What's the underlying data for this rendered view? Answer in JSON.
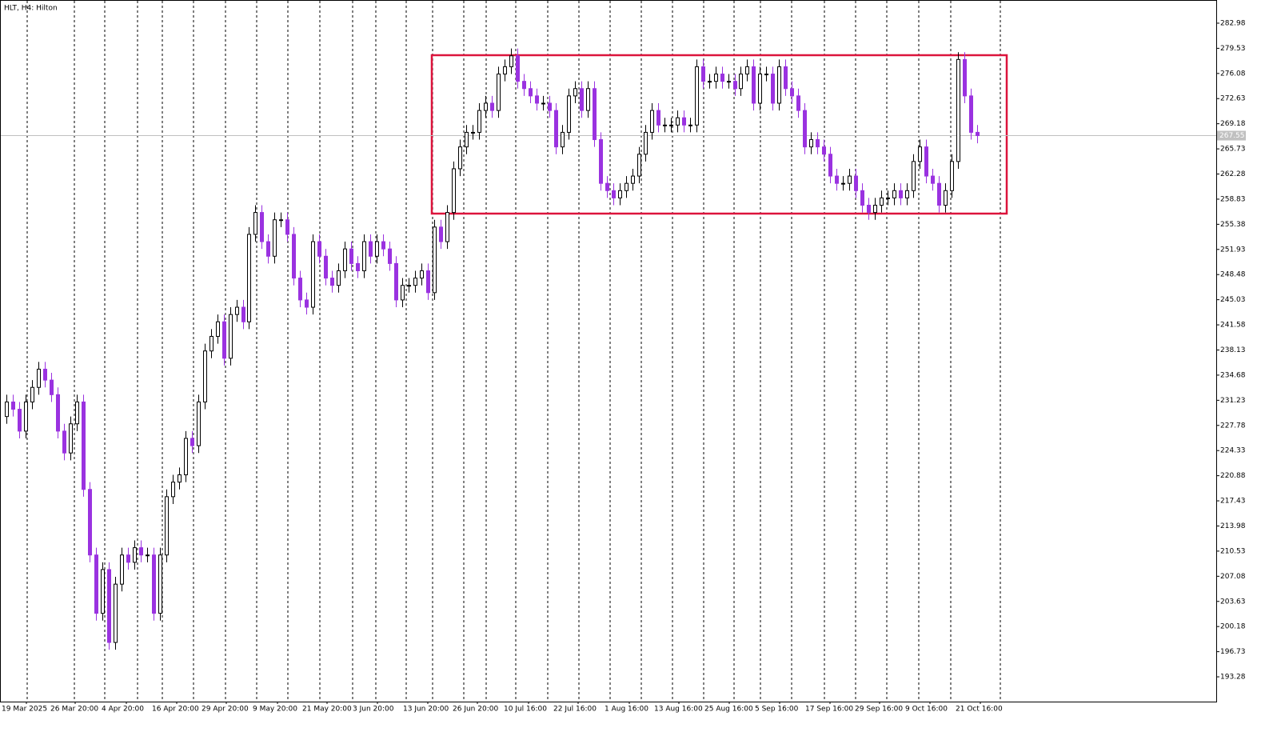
{
  "chart_data": {
    "type": "candlestick",
    "title": "HLT, H4:  Hilton",
    "up_color": "#ffffff",
    "down_color": "#9a32e0",
    "outline_color": "#000000",
    "ylim": [
      189.88,
      286.16
    ],
    "yticks": [
      282.98,
      279.53,
      276.08,
      272.63,
      269.18,
      265.73,
      262.28,
      258.83,
      255.38,
      251.93,
      248.48,
      245.03,
      241.58,
      238.13,
      234.68,
      231.23,
      227.78,
      224.33,
      220.88,
      217.43,
      213.98,
      210.53,
      207.08,
      203.63,
      200.18,
      196.73,
      193.28
    ],
    "last_price": 267.55,
    "xtick_labels": [
      "19 Mar 2025",
      "26 Mar 20:00",
      "4 Apr 20:00",
      "16 Apr 20:00",
      "29 Apr 20:00",
      "9 May 20:00",
      "21 May 20:00",
      "3 Jun 20:00",
      "13 Jun 20:00",
      "26 Jun 20:00",
      "10 Jul 16:00",
      "22 Jul 16:00",
      "1 Aug 16:00",
      "13 Aug 16:00",
      "25 Aug 16:00",
      "5 Sep 16:00",
      "17 Sep 16:00",
      "29 Sep 16:00",
      "9 Oct 16:00",
      "21 Oct 16:00"
    ],
    "open": [
      229,
      231,
      230,
      227,
      231,
      233,
      235.5,
      234,
      232,
      227,
      224,
      228,
      231,
      219,
      210,
      202,
      208,
      198,
      206,
      210,
      209,
      211,
      210,
      210,
      202,
      210,
      218,
      220,
      221,
      226,
      225,
      231,
      238,
      240,
      242,
      237,
      243,
      244,
      242,
      254,
      257,
      253,
      251,
      256,
      256,
      254,
      248,
      245,
      244,
      253,
      251,
      248,
      247,
      249,
      252,
      250,
      249,
      253,
      251,
      253,
      252,
      250,
      245,
      247,
      247,
      248,
      249,
      246,
      255,
      253,
      257,
      263,
      266,
      268,
      268,
      271,
      272,
      271,
      276,
      277,
      278.5,
      275,
      274,
      273,
      272,
      272,
      271,
      266,
      268,
      273,
      274,
      271,
      274,
      267,
      261,
      260,
      259,
      260,
      261,
      262,
      265,
      268,
      271,
      269,
      269,
      269,
      270,
      269,
      269,
      277,
      275,
      275,
      276,
      275,
      275,
      274,
      276,
      277,
      272,
      276,
      276,
      272,
      277,
      274,
      273,
      271,
      266,
      267,
      266,
      265,
      262,
      261,
      261,
      262,
      260,
      258,
      257,
      258,
      259,
      259,
      260,
      259,
      260,
      264,
      266,
      262,
      261,
      258,
      260,
      264,
      278,
      273,
      268
    ],
    "high": [
      232,
      232,
      231,
      232,
      234,
      236.5,
      236.5,
      235,
      233,
      228,
      229,
      232,
      232,
      220,
      211,
      209,
      209,
      207,
      211,
      211,
      212,
      212,
      211,
      211,
      211,
      219,
      221,
      222,
      227,
      227,
      232,
      239,
      241,
      243,
      243,
      244,
      245,
      245,
      255,
      258,
      258,
      254,
      257,
      257,
      257,
      255,
      249,
      246,
      254,
      254,
      252,
      249,
      250,
      253,
      253,
      251,
      254,
      254,
      254,
      254,
      253,
      251,
      248,
      248,
      249,
      250,
      250,
      256,
      256,
      258,
      264,
      267,
      269,
      269,
      272,
      273,
      273,
      277,
      278,
      279.5,
      279.5,
      276,
      275,
      274,
      273,
      273,
      272,
      269,
      274,
      275,
      275,
      275,
      275,
      268,
      262,
      261,
      261,
      262,
      263,
      266,
      269,
      272,
      272,
      270,
      270,
      271,
      271,
      270,
      278,
      278,
      276,
      277,
      277,
      276,
      276,
      277,
      278,
      278,
      277,
      277,
      277,
      278,
      278,
      275,
      274,
      272,
      268,
      268,
      267,
      266,
      263,
      262,
      263,
      263,
      261,
      259,
      259,
      260,
      260,
      261,
      261,
      261,
      265,
      267,
      267,
      263,
      262,
      261,
      265,
      279,
      279,
      274,
      269
    ],
    "low": [
      228,
      229,
      226,
      226,
      230,
      232,
      233,
      231,
      226,
      223,
      223,
      227,
      218,
      209,
      201,
      201,
      197,
      197,
      205,
      208,
      208,
      209,
      209,
      201,
      201,
      209,
      217,
      219,
      220,
      224,
      224,
      230,
      237,
      239,
      236,
      236,
      242,
      241,
      241,
      253,
      252,
      250,
      250,
      255,
      253,
      247,
      244,
      243,
      243,
      250,
      247,
      246,
      246,
      248,
      249,
      248,
      248,
      250,
      250,
      251,
      249,
      244,
      244,
      246,
      246,
      247,
      245,
      245,
      252,
      252,
      256,
      262,
      265,
      267,
      267,
      270,
      270,
      270,
      275,
      276,
      274,
      273,
      272,
      271,
      271,
      270,
      265,
      265,
      267,
      272,
      270,
      270,
      266,
      260,
      259,
      258,
      258,
      259,
      260,
      261,
      264,
      267,
      268,
      268,
      268,
      268,
      268,
      268,
      268,
      274,
      274,
      274,
      274,
      274,
      273,
      273,
      275,
      271,
      271,
      275,
      271,
      271,
      273,
      272,
      270,
      265,
      265,
      265,
      264,
      261,
      260,
      260,
      260,
      259,
      257,
      256,
      256,
      257,
      258,
      258,
      258,
      258,
      259,
      263,
      261,
      260,
      257,
      257,
      259,
      263,
      272,
      267,
      266.5
    ],
    "close": [
      231,
      230,
      227,
      231,
      233,
      235.5,
      234,
      232,
      227,
      224,
      228,
      231,
      219,
      210,
      202,
      208,
      198,
      206,
      210,
      209,
      211,
      210,
      210,
      202,
      210,
      218,
      220,
      221,
      226,
      225,
      231,
      238,
      240,
      242,
      237,
      243,
      244,
      242,
      254,
      257,
      253,
      251,
      256,
      256,
      254,
      248,
      245,
      244,
      253,
      251,
      248,
      247,
      249,
      252,
      250,
      249,
      253,
      251,
      253,
      252,
      250,
      245,
      247,
      247,
      248,
      249,
      246,
      255,
      253,
      257,
      263,
      266,
      268,
      268,
      271,
      272,
      271,
      276,
      277,
      278.5,
      275,
      274,
      273,
      272,
      272,
      271,
      266,
      268,
      273,
      274,
      271,
      274,
      267,
      261,
      260,
      259,
      260,
      261,
      262,
      265,
      268,
      271,
      269,
      269,
      269,
      270,
      269,
      269,
      277,
      275,
      275,
      276,
      275,
      275,
      274,
      276,
      277,
      272,
      276,
      276,
      272,
      277,
      274,
      273,
      271,
      266,
      267,
      266,
      265,
      262,
      261,
      261,
      262,
      260,
      258,
      257,
      258,
      259,
      259,
      260,
      259,
      260,
      264,
      266,
      262,
      261,
      258,
      260,
      264,
      278,
      273,
      268,
      267.55
    ]
  }
}
